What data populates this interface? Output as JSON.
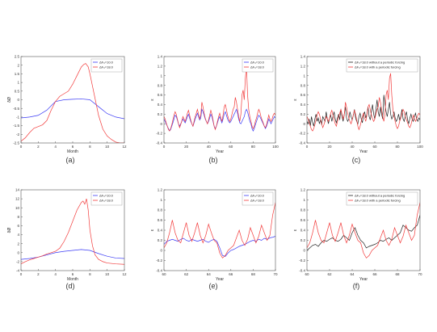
{
  "colors": {
    "blue": "#3b3bf5",
    "red": "#f23a3a",
    "black": "#222222",
    "axis": "#555555"
  },
  "chart_data": [
    {
      "type": "line",
      "panel_label": "(a)",
      "xlabel": "Month",
      "ylabel": "δØ",
      "xlim": [
        0,
        12
      ],
      "ylim": [
        -2.5,
        2.5
      ],
      "xticks": [
        "0",
        "2",
        "4",
        "6",
        "8",
        "10",
        "12"
      ],
      "yticks": [
        "-2.5",
        "-2",
        "-1.5",
        "-1",
        "-0.5",
        "0",
        "0.5",
        "1",
        "1.5",
        "2",
        "2.5"
      ],
      "legend": "top-right",
      "series": [
        {
          "name": "ΔF₀=10.0",
          "color": "blue",
          "x": [
            0,
            1,
            2,
            3,
            4,
            5,
            6,
            7,
            8,
            9,
            10,
            11,
            12
          ],
          "y": [
            -1.05,
            -1.0,
            -0.9,
            -0.6,
            -0.1,
            0.0,
            0.03,
            0.05,
            0.0,
            -0.4,
            -0.8,
            -1.0,
            -1.1
          ]
        },
        {
          "name": "ΔF₀=18.0",
          "color": "red",
          "x": [
            0,
            0.5,
            1,
            1.5,
            2,
            2.5,
            3,
            3.5,
            4,
            4.5,
            5,
            5.5,
            6,
            6.5,
            7,
            7.3,
            7.5,
            7.8,
            8,
            8.5,
            9,
            9.5,
            10,
            10.5,
            11,
            11.5,
            12
          ],
          "y": [
            -2.4,
            -2.2,
            -1.9,
            -1.65,
            -1.55,
            -1.45,
            -1.2,
            -0.6,
            -0.1,
            0.2,
            0.35,
            0.5,
            0.9,
            1.4,
            1.9,
            2.05,
            2.1,
            1.9,
            1.5,
            0.3,
            -0.9,
            -1.7,
            -2.1,
            -2.3,
            -2.45,
            -2.5,
            -2.5
          ]
        }
      ]
    },
    {
      "type": "line",
      "panel_label": "(b)",
      "xlabel": "Year",
      "ylabel": "ε",
      "xlim": [
        0,
        100
      ],
      "ylim": [
        -0.4,
        1.4
      ],
      "xticks": [
        "0",
        "20",
        "40",
        "60",
        "80",
        "100"
      ],
      "yticks": [
        "-0.4",
        "-0.2",
        "0",
        "0.2",
        "0.4",
        "0.6",
        "0.8",
        "1",
        "1.2",
        "1.4"
      ],
      "legend": "top-right",
      "series": [
        {
          "name": "ΔF₀=10.0",
          "color": "blue",
          "x_start": 0,
          "x_step": 1,
          "y": [
            0.1,
            0.05,
            0.0,
            -0.05,
            -0.1,
            -0.15,
            -0.12,
            -0.05,
            0.02,
            0.1,
            0.18,
            0.15,
            0.08,
            0.0,
            -0.05,
            0.0,
            0.05,
            0.1,
            0.06,
            0.02,
            0.08,
            0.15,
            0.2,
            0.12,
            0.05,
            0.0,
            -0.05,
            0.02,
            0.1,
            0.16,
            0.22,
            0.15,
            0.08,
            0.12,
            0.3,
            0.25,
            0.18,
            0.1,
            0.05,
            0.0,
            0.05,
            0.12,
            0.2,
            0.15,
            0.05,
            -0.05,
            -0.1,
            -0.05,
            0.02,
            0.1,
            0.15,
            0.08,
            0.02,
            0.1,
            0.2,
            0.25,
            0.18,
            0.1,
            0.05,
            0.02,
            0.05,
            0.1,
            0.15,
            0.2,
            0.25,
            0.3,
            0.22,
            0.1,
            0.02,
            0.0,
            0.05,
            0.1,
            0.15,
            0.25,
            0.3,
            0.25,
            0.15,
            0.05,
            0.0,
            -0.1,
            -0.15,
            -0.1,
            -0.02,
            0.05,
            0.12,
            0.18,
            0.15,
            0.1,
            0.05,
            0.0,
            -0.05,
            -0.1,
            -0.05,
            0.02,
            0.1,
            0.05,
            0.0,
            0.05,
            0.1,
            0.15,
            0.12
          ]
        },
        {
          "name": "ΔF₀=18.0",
          "color": "red",
          "x_start": 0,
          "x_step": 1,
          "y": [
            0.15,
            0.1,
            0.02,
            -0.05,
            -0.12,
            -0.15,
            -0.1,
            -0.02,
            0.08,
            0.18,
            0.25,
            0.2,
            0.1,
            0.0,
            -0.08,
            -0.02,
            0.06,
            0.15,
            0.1,
            0.05,
            0.12,
            0.22,
            0.28,
            0.18,
            0.08,
            0.0,
            -0.05,
            0.05,
            0.15,
            0.22,
            0.3,
            0.2,
            0.1,
            0.18,
            0.45,
            0.35,
            0.22,
            0.12,
            0.05,
            0.0,
            0.08,
            0.18,
            0.28,
            0.2,
            0.08,
            -0.05,
            -0.12,
            -0.05,
            0.05,
            0.15,
            0.22,
            0.12,
            0.05,
            0.18,
            0.35,
            0.4,
            0.3,
            0.18,
            0.1,
            0.05,
            0.1,
            0.2,
            0.3,
            0.35,
            0.55,
            0.45,
            0.3,
            0.15,
            0.05,
            0.2,
            0.6,
            0.7,
            0.5,
            0.95,
            1.2,
            0.6,
            0.3,
            0.15,
            0.05,
            -0.05,
            -0.1,
            -0.05,
            0.05,
            0.12,
            0.22,
            0.3,
            0.25,
            0.15,
            0.08,
            0.02,
            -0.05,
            -0.08,
            -0.02,
            0.08,
            0.18,
            0.1,
            0.05,
            0.1,
            0.18,
            0.22,
            0.18
          ]
        }
      ]
    },
    {
      "type": "line",
      "panel_label": "(c)",
      "xlabel": "Year",
      "ylabel": "ε",
      "xlim": [
        0,
        100
      ],
      "ylim": [
        -0.4,
        1.4
      ],
      "xticks": [
        "0",
        "20",
        "40",
        "60",
        "80",
        "100"
      ],
      "yticks": [
        "-0.4",
        "-0.2",
        "0",
        "0.2",
        "0.4",
        "0.6",
        "0.8",
        "1",
        "1.2",
        "1.4"
      ],
      "legend": "top-right",
      "series": [
        {
          "name": "ΔF₀=18.0 without a periodic forcing",
          "color": "black",
          "x_start": 0,
          "x_step": 1,
          "y": [
            0.05,
            0.0,
            0.1,
            -0.05,
            0.15,
            0.02,
            -0.05,
            0.1,
            0.2,
            0.05,
            0.12,
            0.0,
            0.08,
            -0.02,
            0.15,
            0.1,
            0.05,
            0.25,
            0.1,
            0.0,
            0.12,
            0.18,
            0.05,
            0.15,
            0.25,
            0.1,
            0.02,
            0.12,
            0.2,
            0.08,
            0.3,
            0.15,
            0.05,
            0.2,
            0.35,
            0.12,
            0.05,
            0.1,
            0.25,
            0.15,
            0.08,
            0.18,
            0.3,
            0.12,
            0.05,
            0.0,
            0.15,
            0.22,
            0.1,
            0.02,
            0.18,
            0.25,
            0.12,
            0.2,
            0.35,
            0.15,
            0.08,
            0.25,
            0.4,
            0.2,
            0.1,
            0.3,
            0.5,
            0.25,
            0.15,
            0.35,
            0.2,
            0.1,
            0.6,
            0.4,
            0.25,
            0.15,
            0.3,
            0.45,
            0.2,
            0.1,
            0.15,
            0.25,
            0.12,
            0.05,
            0.1,
            0.2,
            0.08,
            0.15,
            0.3,
            0.1,
            0.05,
            0.18,
            0.25,
            0.08,
            0.0,
            0.12,
            0.2,
            0.1,
            0.05,
            0.15,
            0.22,
            0.1,
            0.05,
            0.12,
            0.08
          ]
        },
        {
          "name": "ΔF₀=18.0 with a periodic forcing",
          "color": "red",
          "x_start": 0,
          "x_step": 1,
          "y": [
            0.15,
            0.1,
            0.02,
            -0.05,
            -0.12,
            -0.15,
            -0.1,
            -0.02,
            0.08,
            0.18,
            0.25,
            0.2,
            0.1,
            0.0,
            -0.08,
            -0.02,
            0.06,
            0.15,
            0.1,
            0.05,
            0.12,
            0.22,
            0.28,
            0.18,
            0.08,
            0.0,
            -0.05,
            0.05,
            0.15,
            0.22,
            0.3,
            0.2,
            0.1,
            0.18,
            0.45,
            0.35,
            0.22,
            0.12,
            0.05,
            0.0,
            0.08,
            0.18,
            0.28,
            0.2,
            0.08,
            -0.05,
            -0.12,
            -0.05,
            0.05,
            0.15,
            0.22,
            0.12,
            0.05,
            0.18,
            0.35,
            0.4,
            0.3,
            0.18,
            0.1,
            0.05,
            0.1,
            0.2,
            0.3,
            0.35,
            0.55,
            0.45,
            0.3,
            0.15,
            0.05,
            0.2,
            0.6,
            0.7,
            0.5,
            0.95,
            1.05,
            0.6,
            0.3,
            0.15,
            0.05,
            -0.05,
            -0.1,
            -0.05,
            0.05,
            0.12,
            0.22,
            0.3,
            0.25,
            0.15,
            0.08,
            0.02,
            -0.05,
            -0.08,
            -0.02,
            0.08,
            0.18,
            0.1,
            0.05,
            0.1,
            0.18,
            0.22,
            0.18
          ]
        }
      ]
    },
    {
      "type": "line",
      "panel_label": "(d)",
      "xlabel": "Month",
      "ylabel": "δØ",
      "xlim": [
        0,
        12
      ],
      "ylim": [
        -4,
        14
      ],
      "xticks": [
        "0",
        "2",
        "4",
        "6",
        "8",
        "10",
        "12"
      ],
      "yticks": [
        "-4",
        "-2",
        "0",
        "2",
        "4",
        "6",
        "8",
        "10",
        "12",
        "14"
      ],
      "legend": "top-right",
      "series": [
        {
          "name": "ΔF₀=10.0",
          "color": "blue",
          "x": [
            0,
            1,
            2,
            3,
            4,
            5,
            6,
            7,
            8,
            9,
            10,
            11,
            12
          ],
          "y": [
            -1.5,
            -1.3,
            -1.0,
            -0.5,
            0.0,
            0.3,
            0.5,
            0.7,
            0.5,
            -0.2,
            -0.8,
            -1.2,
            -1.3
          ]
        },
        {
          "name": "ΔF₀=18.0",
          "color": "red",
          "x": [
            0,
            0.5,
            1,
            1.5,
            2,
            2.5,
            3,
            3.5,
            4,
            4.5,
            5,
            5.5,
            6,
            6.5,
            7,
            7.2,
            7.4,
            7.6,
            7.8,
            8,
            8.3,
            8.6,
            9,
            9.5,
            10,
            11,
            12
          ],
          "y": [
            -2.5,
            -2.0,
            -1.6,
            -1.3,
            -1.0,
            -0.7,
            -0.3,
            0.0,
            0.3,
            1.0,
            2.5,
            4.5,
            7.0,
            9.5,
            11.2,
            11.5,
            10.8,
            12.0,
            9.5,
            5.0,
            1.5,
            -0.5,
            -1.5,
            -2.0,
            -2.3,
            -2.5,
            -2.6
          ]
        }
      ]
    },
    {
      "type": "line",
      "panel_label": "(e)",
      "xlabel": "Year",
      "ylabel": "ε",
      "xlim": [
        60,
        70
      ],
      "ylim": [
        -0.4,
        1.2
      ],
      "xticks": [
        "60",
        "62",
        "64",
        "66",
        "68",
        "70"
      ],
      "yticks": [
        "-0.4",
        "-0.2",
        "0",
        "0.2",
        "0.4",
        "0.6",
        "0.8",
        "1",
        "1.2"
      ],
      "legend": "top-right",
      "series": [
        {
          "name": "ΔF₀=10.0",
          "color": "blue",
          "x_start": 60,
          "x_step": 0.25,
          "y": [
            0.12,
            0.18,
            0.2,
            0.22,
            0.2,
            0.18,
            0.22,
            0.24,
            0.2,
            0.18,
            0.22,
            0.2,
            0.18,
            0.2,
            0.22,
            0.18,
            0.16,
            0.2,
            0.22,
            0.18,
            0.05,
            -0.1,
            -0.12,
            -0.05,
            0.0,
            0.02,
            0.05,
            0.08,
            0.1,
            0.12,
            0.15,
            0.18,
            0.2,
            0.18,
            0.22,
            0.2,
            0.24,
            0.22,
            0.25,
            0.26,
            0.28
          ]
        },
        {
          "name": "ΔF₀=18.0",
          "color": "red",
          "x_start": 60,
          "x_step": 0.25,
          "y": [
            0.05,
            0.15,
            0.35,
            0.6,
            0.35,
            0.2,
            0.15,
            0.35,
            0.55,
            0.3,
            0.18,
            0.35,
            0.55,
            0.3,
            0.15,
            0.3,
            0.52,
            0.35,
            0.2,
            0.15,
            -0.05,
            -0.15,
            -0.1,
            0.0,
            0.05,
            0.1,
            0.25,
            0.4,
            0.2,
            0.1,
            0.22,
            0.45,
            0.3,
            0.15,
            0.28,
            0.5,
            0.35,
            0.2,
            0.3,
            0.7,
            0.95
          ]
        }
      ]
    },
    {
      "type": "line",
      "panel_label": "(f)",
      "xlabel": "Year",
      "ylabel": "ε",
      "xlim": [
        60,
        70
      ],
      "ylim": [
        -0.4,
        1.2
      ],
      "xticks": [
        "60",
        "62",
        "64",
        "66",
        "68",
        "70"
      ],
      "yticks": [
        "-0.4",
        "-0.2",
        "0",
        "0.2",
        "0.4",
        "0.6",
        "0.8",
        "1",
        "1.2"
      ],
      "legend": "top-right",
      "series": [
        {
          "name": "ΔF₀=18.0 without a periodic forcing",
          "color": "black",
          "x_start": 60,
          "x_step": 0.25,
          "y": [
            0.0,
            0.05,
            0.1,
            0.12,
            0.08,
            0.15,
            0.2,
            0.18,
            0.22,
            0.25,
            0.2,
            0.18,
            0.22,
            0.3,
            0.25,
            0.2,
            0.35,
            0.45,
            0.3,
            0.2,
            0.15,
            0.05,
            0.08,
            0.1,
            0.12,
            0.15,
            0.2,
            0.18,
            0.22,
            0.25,
            0.2,
            0.25,
            0.3,
            0.35,
            0.5,
            0.45,
            0.4,
            0.38,
            0.45,
            0.5,
            0.7
          ]
        },
        {
          "name": "ΔF₀=18.0 with a periodic forcing",
          "color": "red",
          "x_start": 60,
          "x_step": 0.25,
          "y": [
            0.05,
            0.15,
            0.35,
            0.6,
            0.35,
            0.2,
            0.15,
            0.35,
            0.55,
            0.3,
            0.18,
            0.35,
            0.55,
            0.3,
            0.15,
            0.3,
            0.52,
            0.35,
            0.2,
            0.15,
            -0.05,
            -0.15,
            -0.1,
            0.0,
            0.05,
            0.1,
            0.25,
            0.4,
            0.2,
            0.1,
            0.22,
            0.45,
            0.3,
            0.15,
            0.28,
            0.5,
            0.35,
            0.2,
            0.3,
            0.7,
            0.95
          ]
        }
      ]
    }
  ]
}
